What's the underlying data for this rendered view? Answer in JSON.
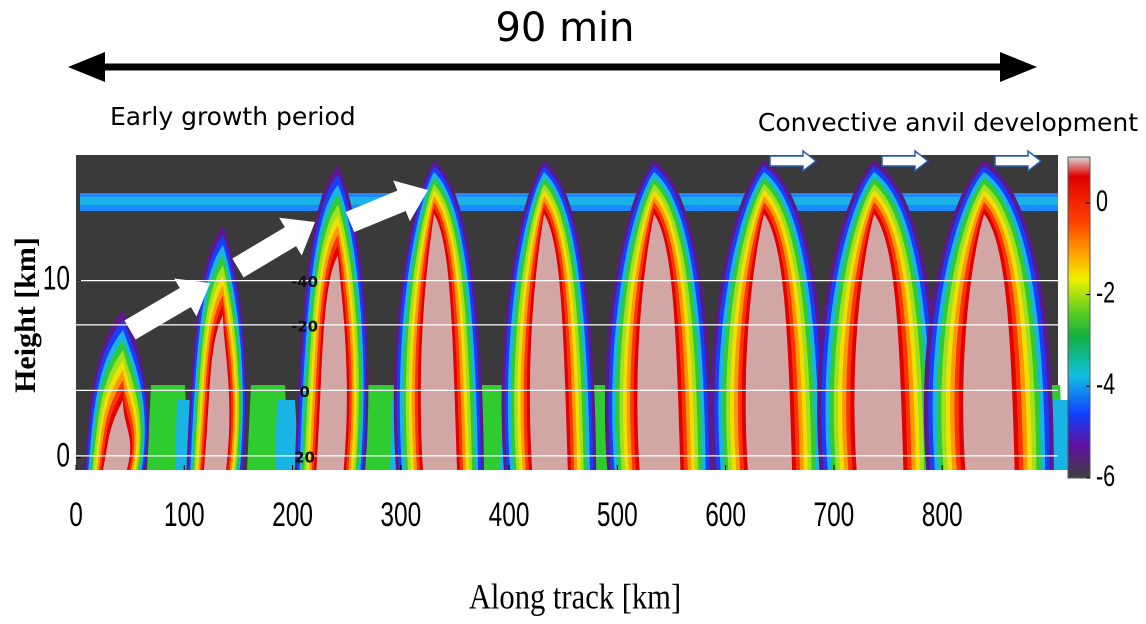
{
  "chart_data": {
    "type": "curtain",
    "title": "90 min",
    "annotations": [
      "Early growth period",
      "Convective anvil development"
    ],
    "x_label": "Along track [km]",
    "y_label": "Height [km]",
    "xlim": [
      0,
      907
    ],
    "xticks": [
      0,
      100,
      200,
      300,
      400,
      500,
      600,
      700,
      800
    ],
    "ylim": [
      -0.7,
      17.1
    ],
    "yticks": [
      0,
      10
    ],
    "colorbar": {
      "lim": [
        -6,
        1
      ],
      "ticks": [
        0,
        -2,
        -4,
        -6
      ]
    },
    "isotherms": {
      "labels": [
        "-40",
        "-20",
        "0",
        "20"
      ],
      "heights": [
        10,
        7.5,
        3.8,
        0.1
      ]
    }
  }
}
